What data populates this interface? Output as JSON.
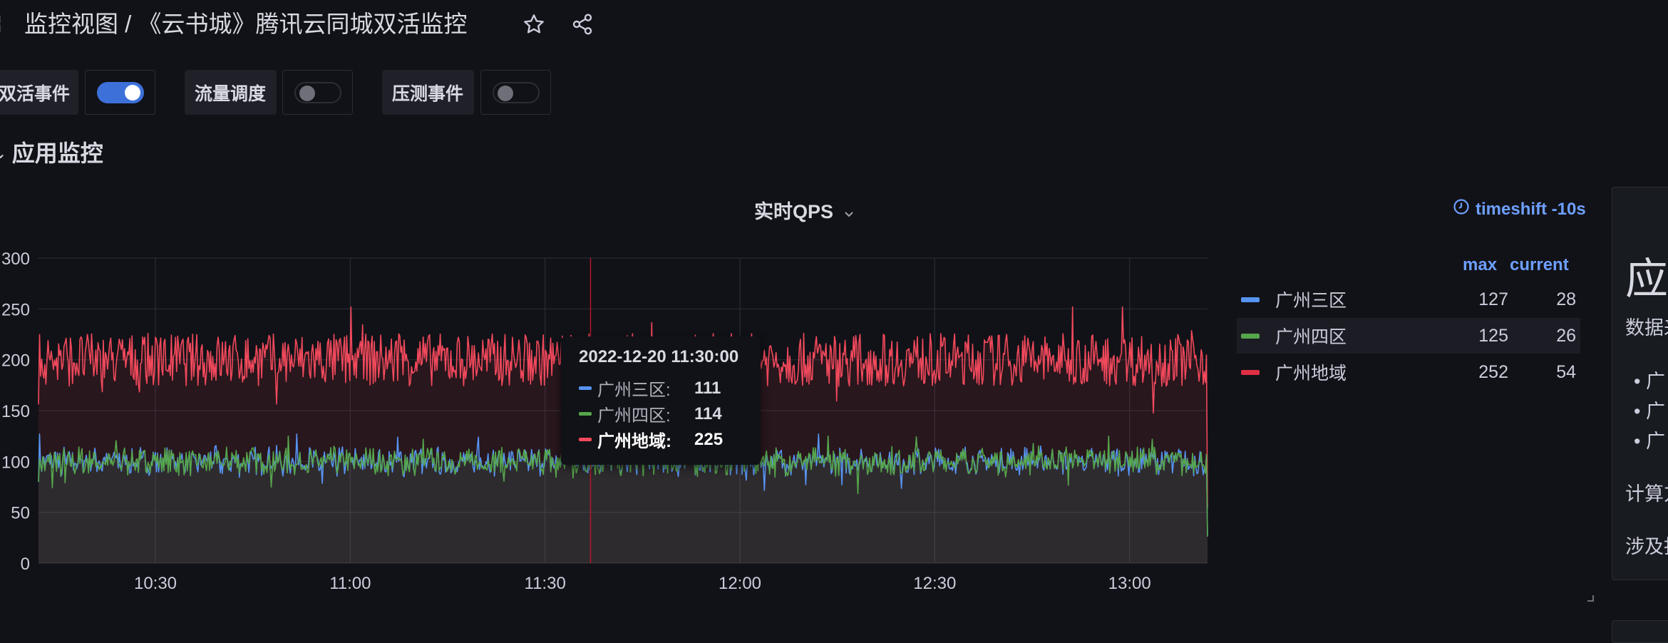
{
  "header": {
    "title": "监控视图  /  《云书城》腾讯云同城双活监控",
    "icons": [
      "apps-icon",
      "star-icon",
      "share-icon"
    ]
  },
  "variables": [
    {
      "label": "双活事件",
      "enabled": true
    },
    {
      "label": "流量调度",
      "enabled": false
    },
    {
      "label": "压测事件",
      "enabled": false
    }
  ],
  "row": {
    "title": "应用监控"
  },
  "panel": {
    "title": "实时QPS",
    "timeshift": "timeshift -10s",
    "legend": {
      "max_label": "max",
      "current_label": "current",
      "items": [
        {
          "name": "广州三区",
          "color": "#5794f2",
          "max": "127",
          "current": "28"
        },
        {
          "name": "广州四区",
          "color": "#56a64b",
          "max": "125",
          "current": "26"
        },
        {
          "name": "广州地域",
          "color": "#e02f44",
          "max": "252",
          "current": "54"
        }
      ]
    },
    "tooltip": {
      "time": "2022-12-20 11:30:00",
      "rows": [
        {
          "name": "广州三区:",
          "value": "111",
          "color": "#5794f2"
        },
        {
          "name": "广州四区:",
          "value": "114",
          "color": "#56a64b"
        },
        {
          "name": "广州地域:",
          "value": "225",
          "color": "#f2495c"
        }
      ]
    }
  },
  "chart_data": {
    "type": "line",
    "x_ticks": [
      "10:30",
      "11:00",
      "11:30",
      "12:00",
      "12:30",
      "13:00"
    ],
    "y_ticks": [
      "300",
      "250",
      "200",
      "150",
      "100",
      "50",
      "0"
    ],
    "ylim": [
      0,
      300
    ],
    "xlim": [
      "10:12",
      "13:12"
    ],
    "cursor_time": "11:37",
    "series": [
      {
        "name": "广州三区",
        "color": "#5794f2",
        "mean": 100,
        "amplitude": 14,
        "max": 127,
        "last": 28
      },
      {
        "name": "广州四区",
        "color": "#56a64b",
        "mean": 100,
        "amplitude": 14,
        "max": 125,
        "last": 26
      },
      {
        "name": "广州地域",
        "color": "#f2495c",
        "mean": 200,
        "amplitude": 26,
        "max": 252,
        "last": 54
      }
    ]
  },
  "right_panel": {
    "heading": "应用",
    "line1": "数据来",
    "list": [
      "广",
      "广",
      "广"
    ],
    "line2": "计算方",
    "line3": "涉及指"
  }
}
